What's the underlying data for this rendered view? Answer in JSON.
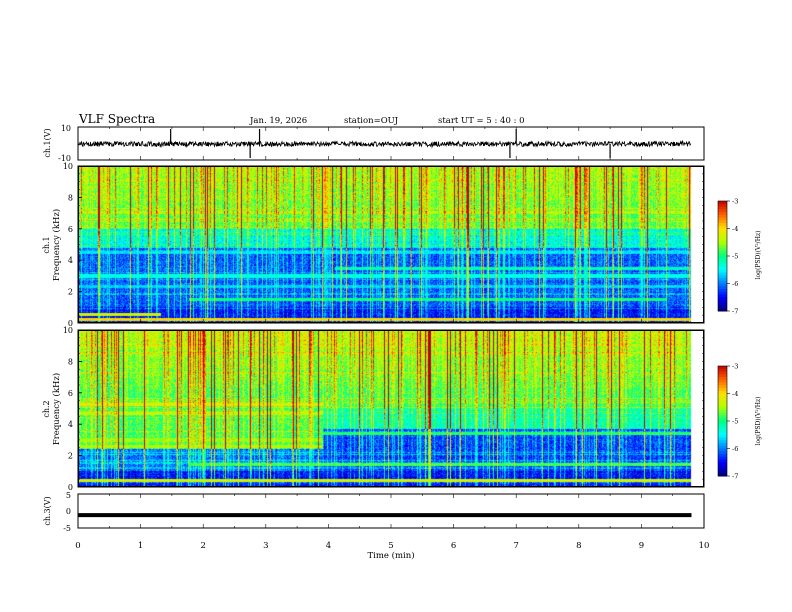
{
  "header": {
    "title": "VLF Spectra",
    "date": "Jan. 19, 2026",
    "station": "station=OUJ",
    "start_time": "start  UT =  5 : 40 : 0"
  },
  "colors": {
    "colormap": [
      "#00007a",
      "#0000ff",
      "#0080ff",
      "#00ffff",
      "#00ff80",
      "#b0ff00",
      "#ffe000",
      "#ff6000",
      "#c00000"
    ],
    "trace": "#000000"
  },
  "chart_data": [
    {
      "type": "line",
      "panel": "ch1-waveform",
      "ylabel": "ch.1(V)",
      "ylim": [
        -10,
        10
      ],
      "yticks": [
        "10",
        "-10"
      ],
      "x": [
        0,
        1,
        2,
        3,
        4,
        5,
        6,
        7,
        8,
        9,
        9.8
      ],
      "values": [
        0,
        0.3,
        -0.2,
        0.1,
        0,
        0.2,
        -0.1,
        0,
        0.1,
        -0.1,
        0
      ],
      "spikes_min": [
        1.48,
        2.75,
        2.9,
        6.9,
        7.0,
        8.5
      ],
      "xlim": [
        0,
        10
      ]
    },
    {
      "type": "heatmap",
      "panel": "ch1-spectrogram",
      "ylabel": "Frequency (kHz)",
      "channel_label": "ch.1",
      "ylim": [
        0,
        10
      ],
      "yticks": [
        "0",
        "2",
        "4",
        "6",
        "8",
        "10"
      ],
      "xlim": [
        0,
        10
      ],
      "data_end_min": 9.8,
      "lines": [
        {
          "f_khz": 0.2,
          "level": -4.0,
          "from_min": 0,
          "to_min": 9.8
        },
        {
          "f_khz": 0.5,
          "level": -4.3,
          "from_min": 0,
          "to_min": 1.3
        },
        {
          "f_khz": 1.5,
          "level": -5.0,
          "from_min": 1.75,
          "to_min": 9.4
        },
        {
          "f_khz": 2.3,
          "level": -5.7,
          "from_min": 0,
          "to_min": 9.8
        },
        {
          "f_khz": 3.0,
          "level": -5.4,
          "from_min": 0,
          "to_min": 9.8
        },
        {
          "f_khz": 3.5,
          "level": -5.2,
          "from_min": 4.1,
          "to_min": 9.8
        },
        {
          "f_khz": 4.5,
          "level": -5.6,
          "from_min": 0,
          "to_min": 9.8
        }
      ],
      "colorbar": {
        "label": "log(PSD)(V²/Hz)",
        "min": -7,
        "max": -3,
        "ticks": [
          "-3",
          "-4",
          "-5",
          "-6",
          "-7"
        ]
      }
    },
    {
      "type": "heatmap",
      "panel": "ch2-spectrogram",
      "ylabel": "Frequency (kHz)",
      "channel_label": "ch.2",
      "ylim": [
        0,
        10
      ],
      "yticks": [
        "0",
        "2",
        "4",
        "6",
        "8",
        "10"
      ],
      "xlim": [
        0,
        10
      ],
      "data_end_min": 9.8,
      "lines": [
        {
          "f_khz": 5.3,
          "level": -4.2,
          "from_min": 0,
          "to_min": 3.9
        },
        {
          "f_khz": 4.7,
          "level": -4.4,
          "from_min": 0,
          "to_min": 3.9
        },
        {
          "f_khz": 3.0,
          "level": -4.6,
          "from_min": 0,
          "to_min": 3.9
        },
        {
          "f_khz": 2.6,
          "level": -4.5,
          "from_min": 0,
          "to_min": 3.9
        },
        {
          "f_khz": 3.4,
          "level": -4.9,
          "from_min": 3.9,
          "to_min": 9.8
        },
        {
          "f_khz": 1.4,
          "level": -4.8,
          "from_min": 1.75,
          "to_min": 9.8
        },
        {
          "f_khz": 0.4,
          "level": -4.3,
          "from_min": 0,
          "to_min": 9.8
        }
      ],
      "colorbar": {
        "label": "log(PSD)(V²/Hz)",
        "min": -7,
        "max": -3,
        "ticks": [
          "-3",
          "-4",
          "-5",
          "-6",
          "-7"
        ]
      }
    },
    {
      "type": "line",
      "panel": "ch3-waveform",
      "ylabel": "ch.3(V)",
      "ylim": [
        -5,
        5
      ],
      "yticks": [
        "5",
        "0",
        "-5"
      ],
      "x": [
        0,
        9.8
      ],
      "values": [
        -1.2,
        -1.2
      ],
      "xlim": [
        0,
        10
      ]
    }
  ],
  "xaxis": {
    "label": "Time  (min)",
    "ticks": [
      "0",
      "1",
      "2",
      "3",
      "4",
      "5",
      "6",
      "7",
      "8",
      "9",
      "10"
    ]
  }
}
